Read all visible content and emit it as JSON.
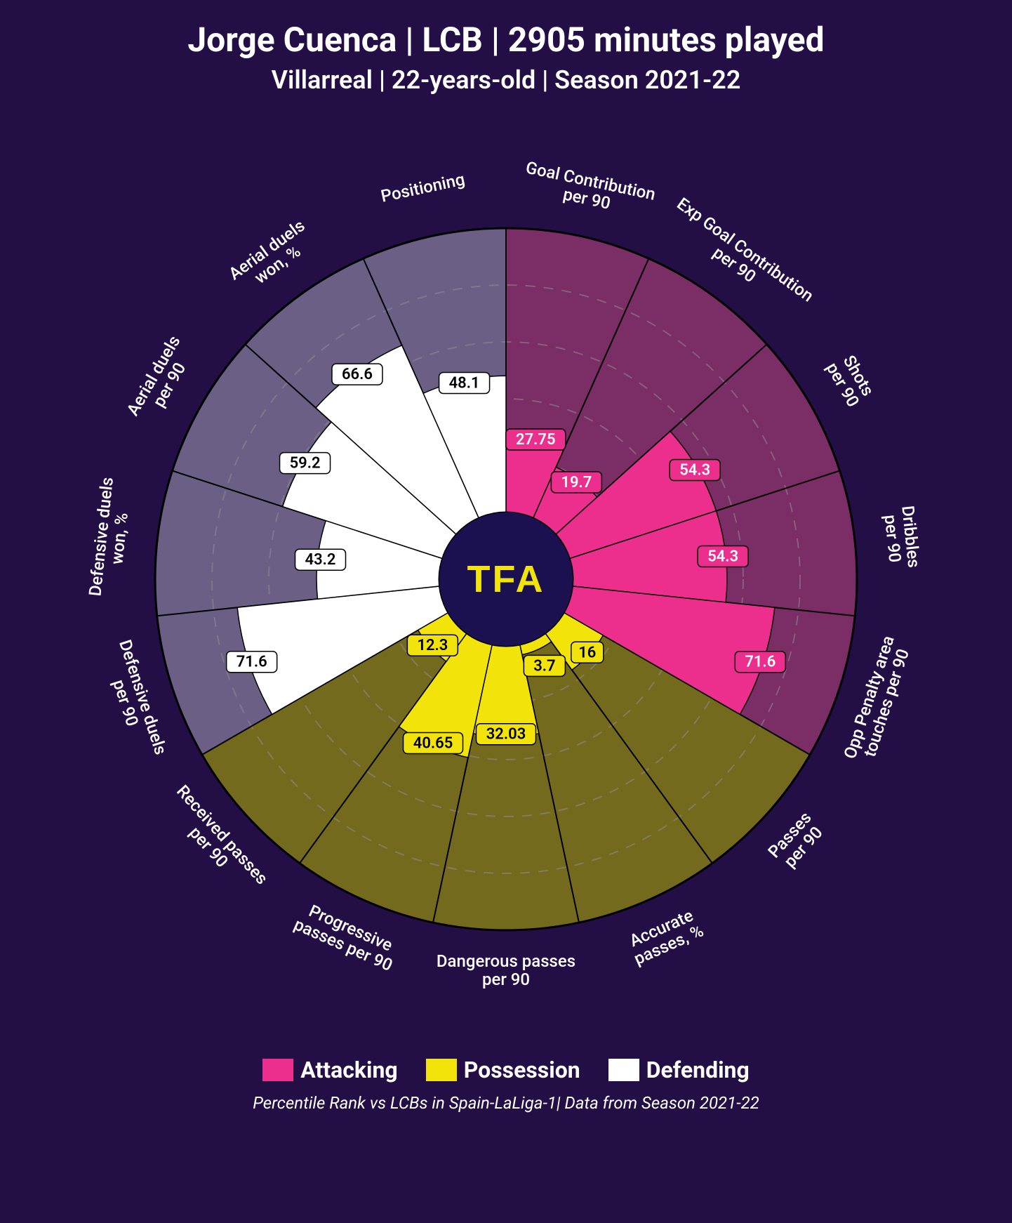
{
  "title": "Jorge Cuenca | LCB | 2905 minutes played",
  "subtitle": "Villarreal | 22-years-old | Season 2021-22",
  "footer": "Percentile Rank vs LCBs in Spain-LaLiga-1| Data from Season 2021-22",
  "center_logo": "TFA",
  "legend": [
    {
      "label": "Attacking",
      "color": "#ec2f8c"
    },
    {
      "label": "Possession",
      "color": "#f2e40b"
    },
    {
      "label": "Defending",
      "color": "#ffffff"
    }
  ],
  "chart": {
    "type": "polar-bar",
    "background_color": "#240e46",
    "grid_color": "#8f8a93",
    "outer_radius": 500,
    "inner_radius": 95,
    "center_fill": "#1c1150",
    "grid_rings": [
      20,
      40,
      60,
      80,
      100
    ],
    "start_angle_deg": -90,
    "groups": {
      "attacking": {
        "fill": "#ec2f8c",
        "sector_bg": "#7b2d66",
        "value_label_bg": "#ec2f8c",
        "value_label_text": "#ffffff"
      },
      "possession": {
        "fill": "#f2e40b",
        "sector_bg": "#746a1e",
        "value_label_bg": "#f2e40b",
        "value_label_text": "#000000"
      },
      "defending": {
        "fill": "#ffffff",
        "sector_bg": "#6b5f85",
        "value_label_bg": "#ffffff",
        "value_label_text": "#000000"
      }
    },
    "metrics": [
      {
        "label_lines": [
          "Goal Contribution",
          "per 90"
        ],
        "value": 27.75,
        "group": "attacking"
      },
      {
        "label_lines": [
          "Exp Goal Contribution",
          "per 90"
        ],
        "value": 19.7,
        "group": "attacking"
      },
      {
        "label_lines": [
          "Shots",
          "per 90"
        ],
        "value": 54.3,
        "group": "attacking"
      },
      {
        "label_lines": [
          "Dribbles",
          "per 90"
        ],
        "value": 54.3,
        "group": "attacking"
      },
      {
        "label_lines": [
          "Opp Penalty area",
          "touches per 90"
        ],
        "value": 71.6,
        "group": "attacking"
      },
      {
        "label_lines": [
          "Passes",
          "per 90"
        ],
        "value": 16.0,
        "group": "possession"
      },
      {
        "label_lines": [
          "Accurate",
          "passes, %"
        ],
        "value": 3.7,
        "group": "possession"
      },
      {
        "label_lines": [
          "Dangerous passes",
          "per 90"
        ],
        "value": 32.03,
        "group": "possession"
      },
      {
        "label_lines": [
          "Progressive",
          "passes per 90"
        ],
        "value": 40.65,
        "group": "possession"
      },
      {
        "label_lines": [
          "Received passes",
          "per 90"
        ],
        "value": 12.3,
        "group": "possession"
      },
      {
        "label_lines": [
          "Defensive duels",
          "per 90"
        ],
        "value": 71.6,
        "group": "defending"
      },
      {
        "label_lines": [
          "Defensive duels",
          "won, %"
        ],
        "value": 43.2,
        "group": "defending"
      },
      {
        "label_lines": [
          "Aerial duels",
          "per 90"
        ],
        "value": 59.2,
        "group": "defending"
      },
      {
        "label_lines": [
          "Aerial duels",
          "won, %"
        ],
        "value": 66.6,
        "group": "defending"
      },
      {
        "label_lines": [
          "Positioning"
        ],
        "value": 48.1,
        "group": "defending"
      }
    ],
    "label_fontsize": 24,
    "value_fontsize": 22,
    "title_fontsize": 48,
    "subtitle_fontsize": 36,
    "legend_fontsize": 32,
    "footer_fontsize": 24
  }
}
